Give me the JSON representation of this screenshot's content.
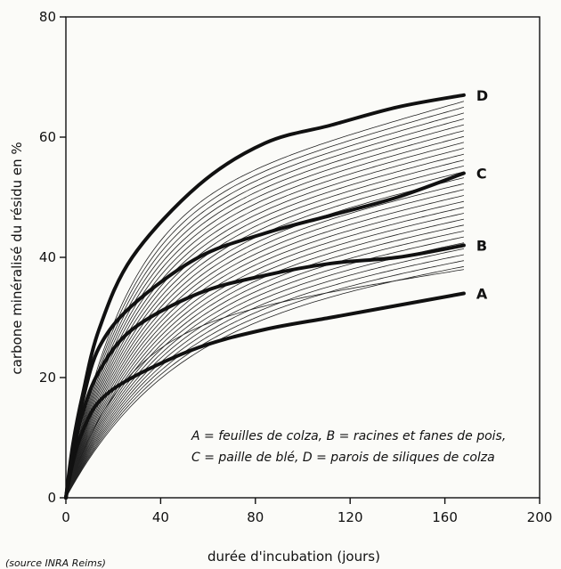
{
  "chart_data": {
    "type": "line",
    "title": "",
    "xlabel": "durée d'incubation (jours)",
    "ylabel": "carbone minéralisé du résidu en %",
    "xlim": [
      0,
      200
    ],
    "ylim": [
      0,
      80
    ],
    "xticks": [
      0,
      40,
      80,
      120,
      160,
      200
    ],
    "yticks": [
      0,
      20,
      40,
      60,
      80
    ],
    "grid": false,
    "x": [
      0,
      3,
      7,
      14,
      28,
      56,
      84,
      112,
      140,
      168
    ],
    "highlighted_series": [
      {
        "name": "A",
        "values": [
          0,
          6,
          11,
          16,
          20,
          25,
          28,
          30,
          32,
          34
        ]
      },
      {
        "name": "B",
        "values": [
          0,
          7,
          14,
          21,
          28,
          34,
          37,
          39,
          40,
          42
        ]
      },
      {
        "name": "C",
        "values": [
          0,
          8,
          16,
          25,
          32,
          40,
          44,
          47,
          50,
          54
        ]
      },
      {
        "name": "D",
        "values": [
          0,
          9,
          17,
          28,
          40,
          52,
          59,
          62,
          65,
          67
        ]
      }
    ],
    "background_series_count": 30,
    "background_series_range": {
      "min_final": 38,
      "max_final": 66
    },
    "legend": {
      "placement": "bottom-right",
      "lines": [
        "A = feuilles de colza, B = racines et fanes de pois,",
        "C = paille de blé, D = parois de siliques de colza"
      ]
    },
    "source_note": "(source INRA Reims)"
  }
}
